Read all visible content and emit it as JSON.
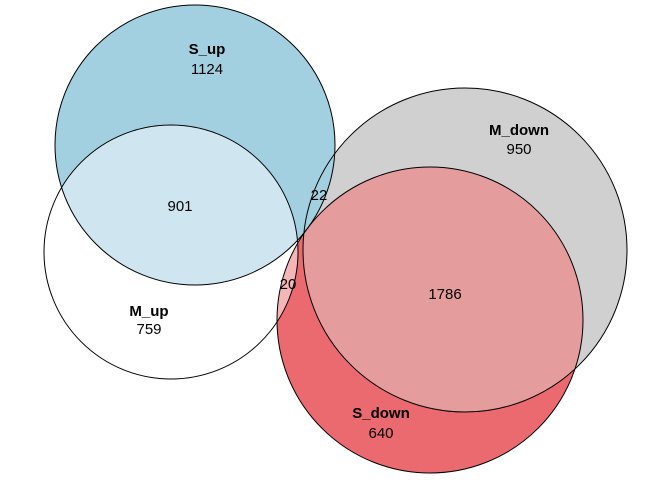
{
  "sets": [
    {
      "key": "s_up",
      "name": "S_up",
      "count": "1124",
      "fill": "#a3d0e0",
      "stroke": "#000000"
    },
    {
      "key": "m_up",
      "name": "M_up",
      "count": "759",
      "fill": "#ffffff",
      "stroke": "#000000"
    },
    {
      "key": "m_down",
      "name": "M_down",
      "count": "950",
      "fill": "#d0d0d0",
      "stroke": "#000000"
    },
    {
      "key": "s_down",
      "name": "S_down",
      "count": "640",
      "fill": "#eb6a70",
      "stroke": "#000000"
    }
  ],
  "overlaps": {
    "s_up_m_up": {
      "value": "901",
      "fill": "#cfe6f0"
    },
    "s_down_m_down": {
      "value": "1786",
      "fill": "#e49c9c"
    },
    "s_up_m_down": {
      "value": "22"
    },
    "m_up_s_down": {
      "value": "20",
      "fill": "#f5b6b8"
    }
  }
}
